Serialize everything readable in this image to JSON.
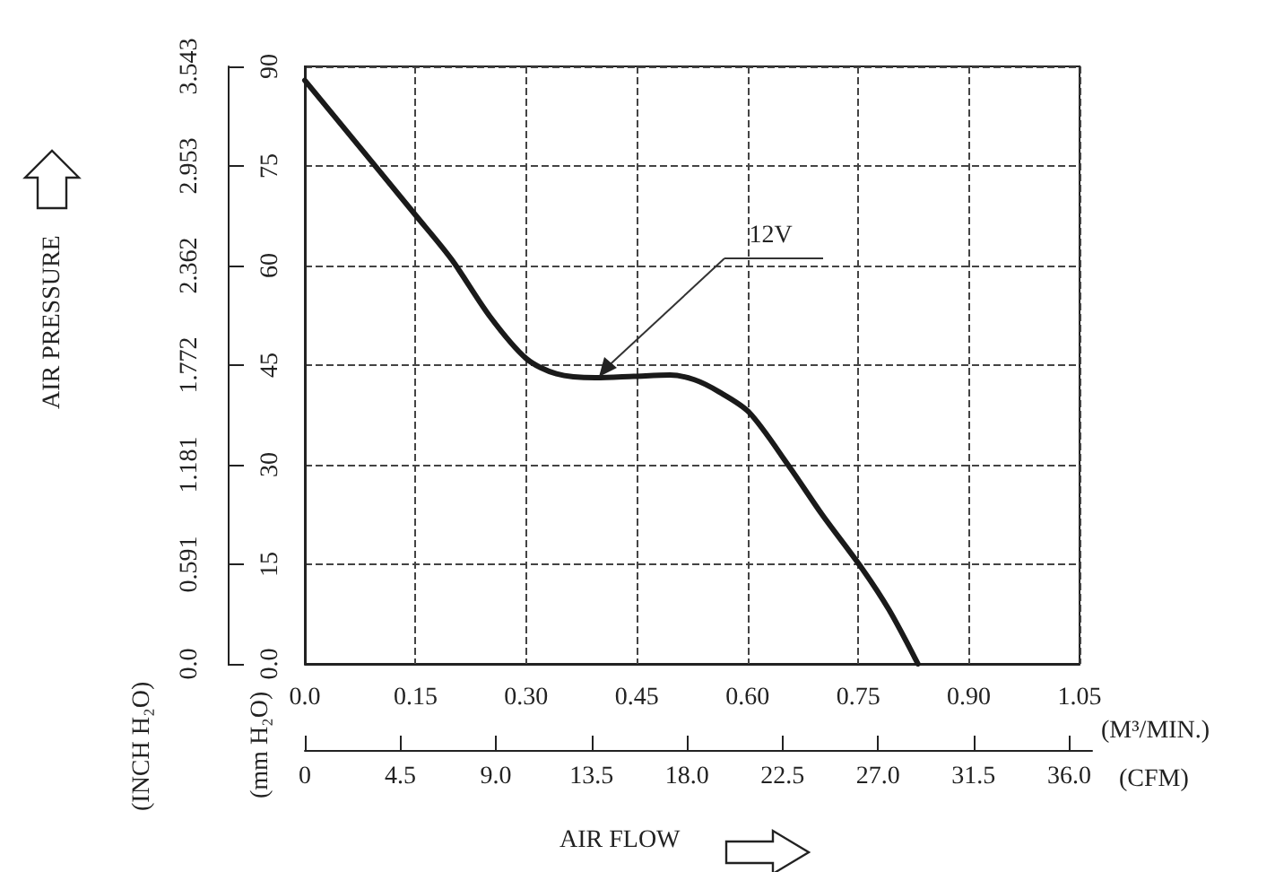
{
  "chart_data": {
    "type": "line",
    "xlabel": "(M³/MIN.)",
    "ylabel": "(mm H₂O)",
    "y2label": "(INCH H₂O)",
    "x2label": "(CFM)",
    "annotations": [
      "AIR PRESSURE",
      "AIR FLOW",
      {
        "text": "12V",
        "x": 0.398,
        "y": 43.3
      }
    ],
    "series": [
      {
        "color": "#1a1a1a",
        "x": [
          0,
          0.15,
          0.199,
          0.251,
          0.3,
          0.341,
          0.394,
          0.446,
          0.495,
          0.528,
          0.561,
          0.602,
          0.656,
          0.701,
          0.755,
          0.792,
          0.831
        ],
        "values": [
          87.9,
          67.6,
          60.9,
          52.3,
          46.0,
          43.7,
          43.1,
          43.3,
          43.5,
          42.8,
          41.0,
          37.9,
          29.8,
          22.5,
          14.4,
          8.1,
          0
        ]
      }
    ],
    "xlim": [
      0,
      1.05
    ],
    "xticks": [
      {
        "value": 0,
        "label": "0.0"
      },
      0.15,
      {
        "value": 0.3,
        "label": "0.30"
      },
      0.45,
      {
        "value": 0.6,
        "label": "0.60"
      },
      0.75,
      {
        "value": 0.9,
        "label": "0.90"
      },
      1.05
    ],
    "ylim": [
      0,
      90
    ],
    "yticks": [
      {
        "value": 0,
        "label": "0.0"
      },
      15,
      30,
      45,
      60,
      75,
      90
    ],
    "y2lim": [
      0,
      3.543
    ],
    "y2ticks": [
      {
        "value": 0,
        "label": "0.0"
      },
      0.591,
      1.181,
      1.772,
      2.362,
      2.953,
      3.543
    ],
    "x2lim": [
      0,
      37.08
    ],
    "x2ticks": [
      0,
      4.5,
      {
        "value": 9,
        "label": "9.0"
      },
      13.5,
      {
        "value": 18,
        "label": "18.0"
      },
      22.5,
      {
        "value": 27,
        "label": "27.0"
      },
      31.5,
      {
        "value": 36,
        "label": "36.0"
      }
    ],
    "grid": true,
    "marker": "none",
    "line_style": "solid"
  }
}
